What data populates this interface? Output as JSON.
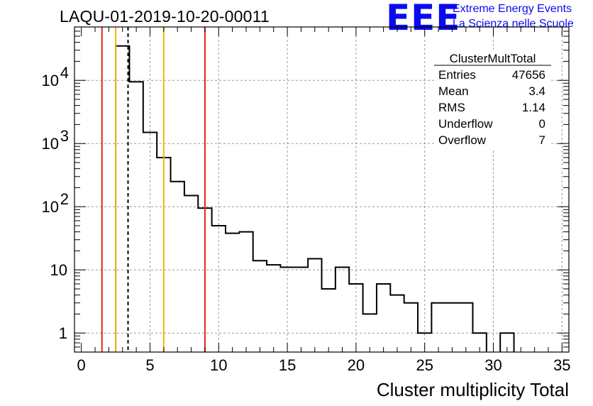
{
  "header": {
    "title": "LAQU-01-2019-10-20-00011",
    "logo": "EEE",
    "logo_line1": "Extreme Energy Events",
    "logo_line2": "La Scienza nelle Scuole"
  },
  "stats": {
    "name": "ClusterMultTotal",
    "rows": [
      {
        "label": "Entries",
        "value": "47656"
      },
      {
        "label": "Mean",
        "value": "3.4"
      },
      {
        "label": "RMS",
        "value": "1.14"
      },
      {
        "label": "Underflow",
        "value": "0"
      },
      {
        "label": "Overflow",
        "value": "7"
      }
    ]
  },
  "chart_data": {
    "type": "histogram",
    "title": "LAQU-01-2019-10-20-00011",
    "xlabel": "Cluster multiplicity Total",
    "ylabel": "",
    "xlim": [
      -0.5,
      35.5
    ],
    "ylim": [
      0.5,
      70000
    ],
    "yscale": "log",
    "grid": true,
    "bin_width": 1,
    "bin_centers": [
      0,
      1,
      2,
      3,
      4,
      5,
      6,
      7,
      8,
      9,
      10,
      11,
      12,
      13,
      14,
      15,
      16,
      17,
      18,
      19,
      20,
      21,
      22,
      23,
      24,
      25,
      26,
      27,
      28,
      29,
      30,
      31,
      32,
      33,
      34,
      35
    ],
    "counts": [
      0,
      0,
      0,
      35000,
      9500,
      1500,
      600,
      250,
      150,
      95,
      50,
      38,
      40,
      14,
      12,
      11,
      11,
      15,
      5,
      11,
      6,
      2,
      6,
      4,
      3,
      1,
      3,
      3,
      3,
      1,
      0,
      1,
      0,
      0,
      0,
      0
    ],
    "x_ticks": [
      0,
      5,
      10,
      15,
      20,
      25,
      30,
      35
    ],
    "x_tick_labels": [
      "0",
      "5",
      "10",
      "15",
      "20",
      "25",
      "30",
      "35"
    ],
    "y_ticks": [
      1,
      10,
      100,
      1000,
      10000
    ],
    "y_tick_labels": [
      "1",
      "10",
      "10^2",
      "10^3",
      "10^4"
    ],
    "vlines": [
      {
        "x": 1.5,
        "color": "#e8231c",
        "style": "solid"
      },
      {
        "x": 2.5,
        "color": "#f2b705",
        "style": "solid"
      },
      {
        "x": 3.4,
        "color": "#000000",
        "style": "dashed"
      },
      {
        "x": 6.0,
        "color": "#f2b705",
        "style": "solid"
      },
      {
        "x": 9.0,
        "color": "#e8231c",
        "style": "solid"
      }
    ],
    "colors": {
      "histogram": "#000000",
      "grid": "#9a9a9a",
      "logo": "#0b0bf0"
    }
  }
}
